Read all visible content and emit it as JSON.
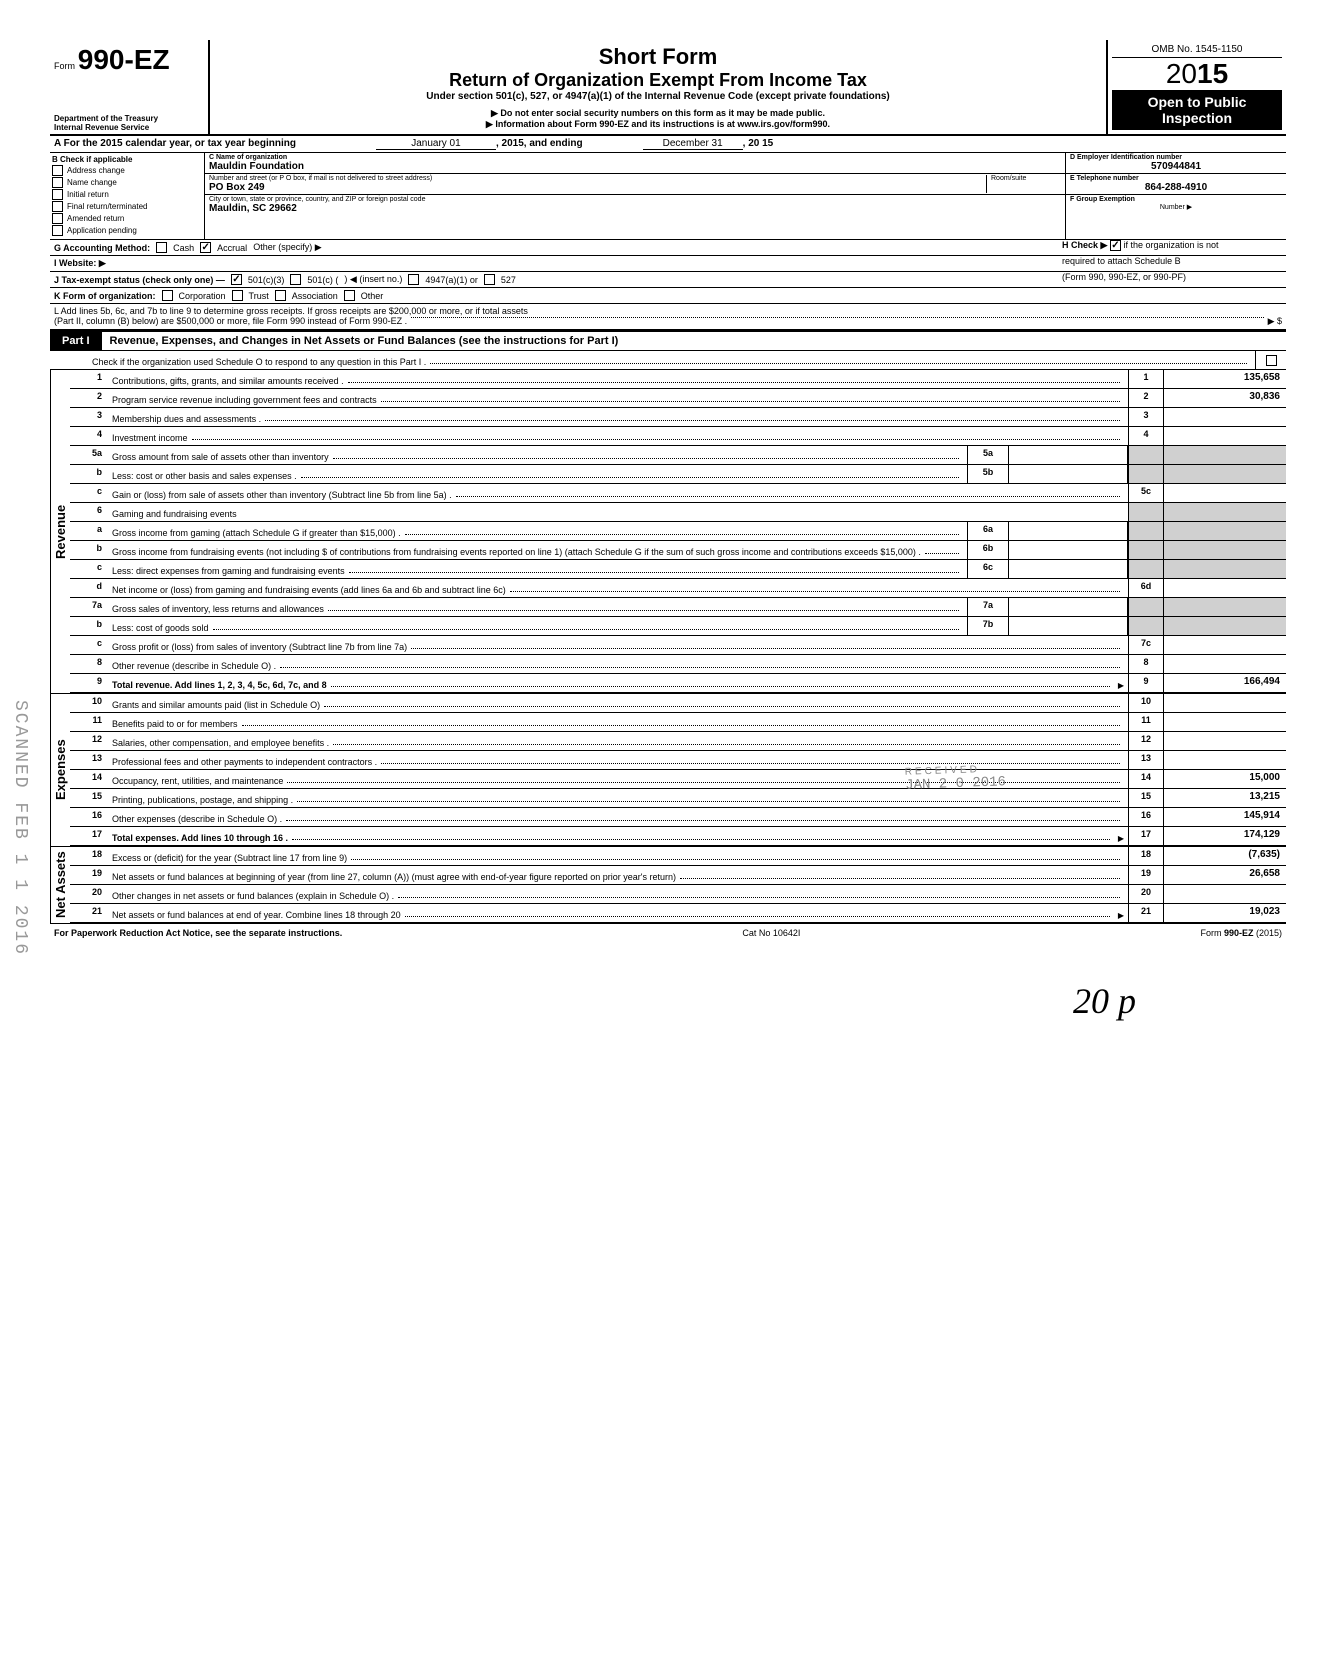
{
  "header": {
    "form_prefix": "Form",
    "form_number": "990-EZ",
    "short_form": "Short Form",
    "title": "Return of Organization Exempt From Income Tax",
    "under_section": "Under section 501(c), 527, or 4947(a)(1) of the Internal Revenue Code (except private foundations)",
    "no_ssn": "▶ Do not enter social security numbers on this form as it may be made public.",
    "info_line": "▶ Information about Form 990-EZ and its instructions is at www.irs.gov/form990.",
    "dept1": "Department of the Treasury",
    "dept2": "Internal Revenue Service",
    "omb": "OMB No. 1545-1150",
    "year_prefix": "20",
    "year_suffix": "15",
    "open": "Open to Public",
    "inspection": "Inspection"
  },
  "row_a": {
    "label": "A  For the 2015 calendar year, or tax year beginning",
    "begin": "January 01",
    "mid": ", 2015, and ending",
    "end": "December 31",
    "year": ", 20   15"
  },
  "section_b": {
    "check_label": "B  Check if applicable",
    "checks": [
      {
        "label": "Address change",
        "checked": false
      },
      {
        "label": "Name change",
        "checked": false
      },
      {
        "label": "Initial return",
        "checked": false
      },
      {
        "label": "Final return/terminated",
        "checked": false
      },
      {
        "label": "Amended return",
        "checked": false
      },
      {
        "label": "Application pending",
        "checked": false
      }
    ],
    "c_label": "C  Name of organization",
    "org_name": "Mauldin Foundation",
    "street_label": "Number and street (or P O  box, if mail is not delivered to street address)",
    "room_label": "Room/suite",
    "street": "PO Box 249",
    "city_label": "City or town, state or province, country, and ZIP or foreign postal code",
    "city": "Mauldin, SC 29662",
    "d_label": "D Employer Identification number",
    "ein": "570944841",
    "e_label": "E  Telephone number",
    "phone": "864-288-4910",
    "f_label": "F  Group Exemption",
    "f_number": "Number ▶"
  },
  "row_g": {
    "label": "G  Accounting Method:",
    "cash": "Cash",
    "accrual": "Accrual",
    "other": "Other (specify) ▶",
    "h_label": "H  Check ▶",
    "h_text": "if the organization is not",
    "h_text2": "required to attach Schedule B",
    "h_text3": "(Form 990, 990-EZ, or 990-PF)"
  },
  "row_i": "I   Website: ▶",
  "row_j": {
    "label": "J  Tax-exempt status (check only one) —",
    "opt1": "501(c)(3)",
    "opt2": "501(c) (",
    "opt2b": ") ◀ (insert no.)",
    "opt3": "4947(a)(1) or",
    "opt4": "527"
  },
  "row_k": {
    "label": "K  Form of organization:",
    "corp": "Corporation",
    "trust": "Trust",
    "assoc": "Association",
    "other": "Other"
  },
  "row_l": {
    "line1": "L  Add lines 5b, 6c, and 7b to line 9 to determine gross receipts. If gross receipts are $200,000 or more, or if total assets",
    "line2": "(Part II, column (B) below) are $500,000 or more, file Form 990 instead of Form 990-EZ .",
    "arrow": "▶  $"
  },
  "part1": {
    "label": "Part I",
    "title": "Revenue, Expenses, and Changes in Net Assets or Fund Balances (see the instructions for Part I)",
    "check_line": "Check if the organization used Schedule O to respond to any question in this Part I ."
  },
  "sections": {
    "revenue": "Revenue",
    "expenses": "Expenses",
    "net_assets": "Net Assets"
  },
  "lines": [
    {
      "num": "1",
      "desc": "Contributions, gifts, grants, and similar amounts received .",
      "box": "1",
      "val": "135,658"
    },
    {
      "num": "2",
      "desc": "Program service revenue including government fees and contracts",
      "box": "2",
      "val": "30,836"
    },
    {
      "num": "3",
      "desc": "Membership dues and assessments .",
      "box": "3",
      "val": ""
    },
    {
      "num": "4",
      "desc": "Investment income",
      "box": "4",
      "val": ""
    },
    {
      "num": "5a",
      "desc": "Gross amount from sale of assets other than inventory",
      "mid_box": "5a",
      "mid_val": ""
    },
    {
      "num": "b",
      "desc": "Less: cost or other basis and sales expenses .",
      "mid_box": "5b",
      "mid_val": ""
    },
    {
      "num": "c",
      "desc": "Gain or (loss) from sale of assets other than inventory (Subtract line 5b from line 5a) .",
      "box": "5c",
      "val": ""
    },
    {
      "num": "6",
      "desc": "Gaming and fundraising events"
    },
    {
      "num": "a",
      "desc": "Gross income from gaming (attach Schedule G if greater than $15,000) .",
      "mid_box": "6a",
      "mid_val": ""
    },
    {
      "num": "b",
      "desc": "Gross income from fundraising events (not including  $                              of contributions from fundraising events reported on line 1) (attach Schedule G if the sum of such gross income and contributions exceeds $15,000) .",
      "mid_box": "6b",
      "mid_val": ""
    },
    {
      "num": "c",
      "desc": "Less: direct expenses from gaming and fundraising events",
      "mid_box": "6c",
      "mid_val": ""
    },
    {
      "num": "d",
      "desc": "Net income or (loss) from gaming and fundraising events (add lines 6a and 6b and subtract line 6c)",
      "box": "6d",
      "val": ""
    },
    {
      "num": "7a",
      "desc": "Gross sales of inventory, less returns and allowances",
      "mid_box": "7a",
      "mid_val": ""
    },
    {
      "num": "b",
      "desc": "Less: cost of goods sold",
      "mid_box": "7b",
      "mid_val": ""
    },
    {
      "num": "c",
      "desc": "Gross profit or (loss) from sales of inventory (Subtract line 7b from line 7a)",
      "box": "7c",
      "val": ""
    },
    {
      "num": "8",
      "desc": "Other revenue (describe in Schedule O) .",
      "box": "8",
      "val": ""
    },
    {
      "num": "9",
      "desc": "Total revenue. Add lines 1, 2, 3, 4, 5c, 6d, 7c, and 8",
      "box": "9",
      "val": "166,494",
      "bold": true,
      "arrow": true
    }
  ],
  "expense_lines": [
    {
      "num": "10",
      "desc": "Grants and similar amounts paid (list in Schedule O)",
      "box": "10",
      "val": ""
    },
    {
      "num": "11",
      "desc": "Benefits paid to or for members",
      "box": "11",
      "val": ""
    },
    {
      "num": "12",
      "desc": "Salaries, other compensation, and employee benefits .",
      "box": "12",
      "val": ""
    },
    {
      "num": "13",
      "desc": "Professional fees and other payments to independent contractors .",
      "box": "13",
      "val": ""
    },
    {
      "num": "14",
      "desc": "Occupancy, rent, utilities, and maintenance",
      "box": "14",
      "val": "15,000"
    },
    {
      "num": "15",
      "desc": "Printing, publications, postage, and shipping .",
      "box": "15",
      "val": "13,215"
    },
    {
      "num": "16",
      "desc": "Other expenses (describe in Schedule O) .",
      "box": "16",
      "val": "145,914"
    },
    {
      "num": "17",
      "desc": "Total expenses. Add lines 10 through 16 .",
      "box": "17",
      "val": "174,129",
      "bold": true,
      "arrow": true
    }
  ],
  "net_lines": [
    {
      "num": "18",
      "desc": "Excess or (deficit) for the year (Subtract line 17 from line 9)",
      "box": "18",
      "val": "(7,635)"
    },
    {
      "num": "19",
      "desc": "Net assets or fund balances at beginning of year (from line 27, column (A)) (must agree with end-of-year figure reported on prior year's return)",
      "box": "19",
      "val": "26,658"
    },
    {
      "num": "20",
      "desc": "Other changes in net assets or fund balances (explain in Schedule O) .",
      "box": "20",
      "val": ""
    },
    {
      "num": "21",
      "desc": "Net assets or fund balances at end of year. Combine lines 18 through 20",
      "box": "21",
      "val": "19,023",
      "arrow": true
    }
  ],
  "footer": {
    "left": "For Paperwork Reduction Act Notice, see the separate instructions.",
    "center": "Cat  No  10642I",
    "right": "Form 990-EZ (2015)"
  },
  "stamps": {
    "received": "RECEIVED",
    "jan": "JAN 2 0 2016",
    "scanned": "SCANNED FEB 1 1 2016",
    "handwritten": "20    p"
  }
}
